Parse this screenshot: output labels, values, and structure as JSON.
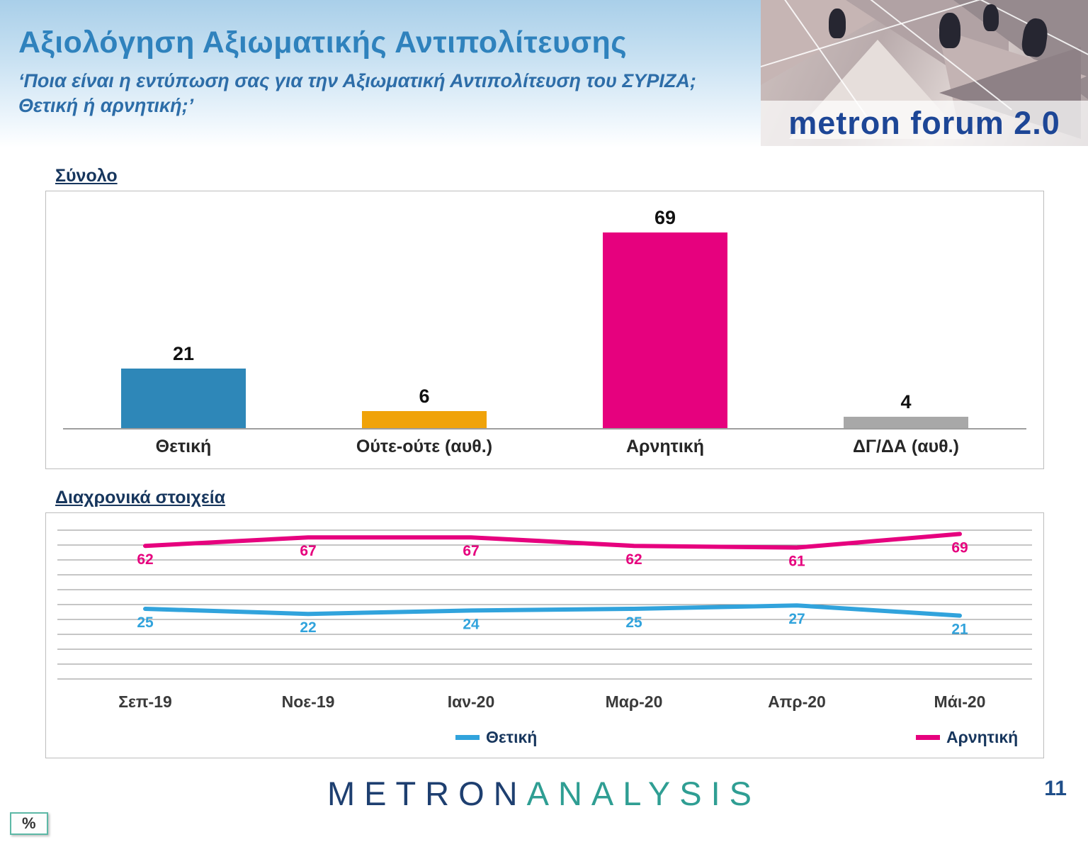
{
  "header": {
    "title": "Αξιολόγηση Αξιωματικής Αντιπολίτευσης",
    "subtitle": "‘Ποια είναι η εντύπωση σας για την Αξιωματική Αντιπολίτευση του ΣΥΡΙΖΑ; Θετική ή αρνητική;’",
    "logo_text": "metron forum 2.0"
  },
  "sections": {
    "bar": {
      "title": "Σύνολο"
    },
    "line": {
      "title": "Διαχρονικά στοιχεία"
    }
  },
  "chart_data": [
    {
      "type": "bar",
      "title": "Σύνολο",
      "categories": [
        "Θετική",
        "Ούτε-ούτε (αυθ.)",
        "Αρνητική",
        "ΔΓ/ΔΑ (αυθ.)"
      ],
      "values": [
        21,
        6,
        69,
        4
      ],
      "colors": [
        "#2e87b8",
        "#f0a30a",
        "#e6017e",
        "#a8a8a8"
      ],
      "unit": "%",
      "ylim": [
        0,
        80
      ],
      "grid": false,
      "value_labels": true
    },
    {
      "type": "line",
      "title": "Διαχρονικά στοιχεία",
      "categories": [
        "Σεπ-19",
        "Νοε-19",
        "Ιαν-20",
        "Μαρ-20",
        "Απρ-20",
        "Μάι-20"
      ],
      "series": [
        {
          "name": "Θετική",
          "color": "#31a3dc",
          "values": [
            25,
            22,
            24,
            25,
            27,
            21
          ]
        },
        {
          "name": "Αρνητική",
          "color": "#e6017e",
          "values": [
            62,
            67,
            67,
            62,
            61,
            69
          ]
        }
      ],
      "unit": "%",
      "ylim": [
        0,
        80
      ],
      "grid": true,
      "gridline_count": 11,
      "legend_position": "bottom",
      "value_labels": true
    }
  ],
  "footer": {
    "percent_label": "%",
    "brand_part1": "METRON",
    "brand_part2": "ANALYSIS",
    "page_number": "11"
  }
}
